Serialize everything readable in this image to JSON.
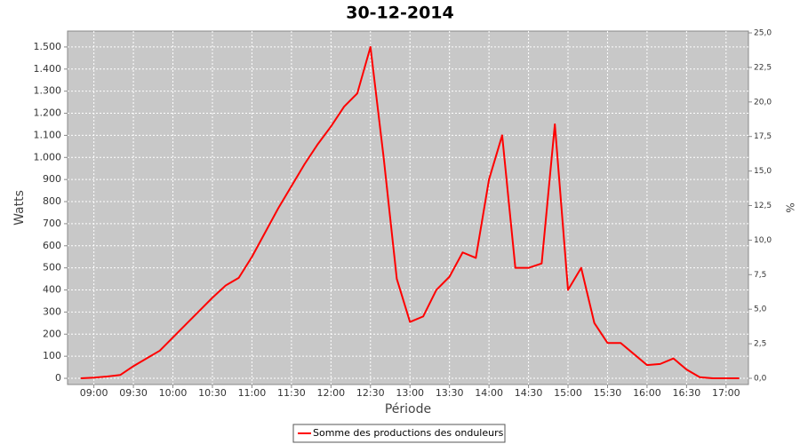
{
  "chart_data": {
    "type": "line",
    "title": "30-12-2014",
    "x_label": "Période",
    "y_label": "Watts",
    "y2_label": "%",
    "x": [
      "08:50",
      "09:00",
      "09:10",
      "09:20",
      "09:30",
      "09:40",
      "09:50",
      "10:00",
      "10:10",
      "10:20",
      "10:30",
      "10:40",
      "10:50",
      "11:00",
      "11:10",
      "11:20",
      "11:30",
      "11:40",
      "11:50",
      "12:00",
      "12:10",
      "12:20",
      "12:30",
      "12:40",
      "12:50",
      "13:00",
      "13:10",
      "13:20",
      "13:30",
      "13:40",
      "13:50",
      "14:00",
      "14:10",
      "14:20",
      "14:30",
      "14:40",
      "14:50",
      "15:00",
      "15:10",
      "15:20",
      "15:30",
      "15:40",
      "15:50",
      "16:00",
      "16:10",
      "16:20",
      "16:30",
      "16:40",
      "16:50",
      "17:00",
      "17:10"
    ],
    "series": [
      {
        "name": "Somme des productions des onduleurs",
        "color": "#ff0000",
        "values": [
          0,
          3,
          8,
          15,
          55,
          90,
          125,
          185,
          245,
          305,
          365,
          420,
          455,
          550,
          660,
          770,
          870,
          970,
          1060,
          1140,
          1230,
          1290,
          1500,
          1000,
          450,
          255,
          280,
          400,
          460,
          570,
          545,
          900,
          1100,
          500,
          500,
          520,
          1150,
          400,
          500,
          250,
          160,
          160,
          110,
          60,
          65,
          90,
          40,
          5,
          0,
          0,
          0
        ]
      }
    ],
    "xlim": [
      "08:40",
      "17:17"
    ],
    "xticks": [
      "09:00",
      "09:30",
      "10:00",
      "10:30",
      "11:00",
      "11:30",
      "12:00",
      "12:30",
      "13:00",
      "13:30",
      "14:00",
      "14:30",
      "15:00",
      "15:30",
      "16:00",
      "16:30",
      "17:00"
    ],
    "ylim": [
      -28,
      1572
    ],
    "yticks": [
      0,
      100,
      200,
      300,
      400,
      500,
      600,
      700,
      800,
      900,
      {
        "value": 1000,
        "label": "1.000"
      },
      {
        "value": 1100,
        "label": "1.100"
      },
      {
        "value": 1200,
        "label": "1.200"
      },
      {
        "value": 1300,
        "label": "1.300"
      },
      {
        "value": 1400,
        "label": "1.400"
      },
      {
        "value": 1500,
        "label": "1.500"
      }
    ],
    "y2lim": [
      -0.45,
      25.13
    ],
    "y2ticks": [
      {
        "value": 0,
        "label": "0,0"
      },
      {
        "value": 2.5,
        "label": "2,5"
      },
      {
        "value": 5,
        "label": "5,0"
      },
      {
        "value": 7.5,
        "label": "7,5"
      },
      {
        "value": 10,
        "label": "10,0"
      },
      {
        "value": 12.5,
        "label": "12,5"
      },
      {
        "value": 15,
        "label": "15,0"
      },
      {
        "value": 17.5,
        "label": "17,5"
      },
      {
        "value": 20,
        "label": "20,0"
      },
      {
        "value": 22.5,
        "label": "22,5"
      },
      {
        "value": 25,
        "label": "25,0"
      }
    ],
    "grid": true,
    "legend": "bottom"
  }
}
